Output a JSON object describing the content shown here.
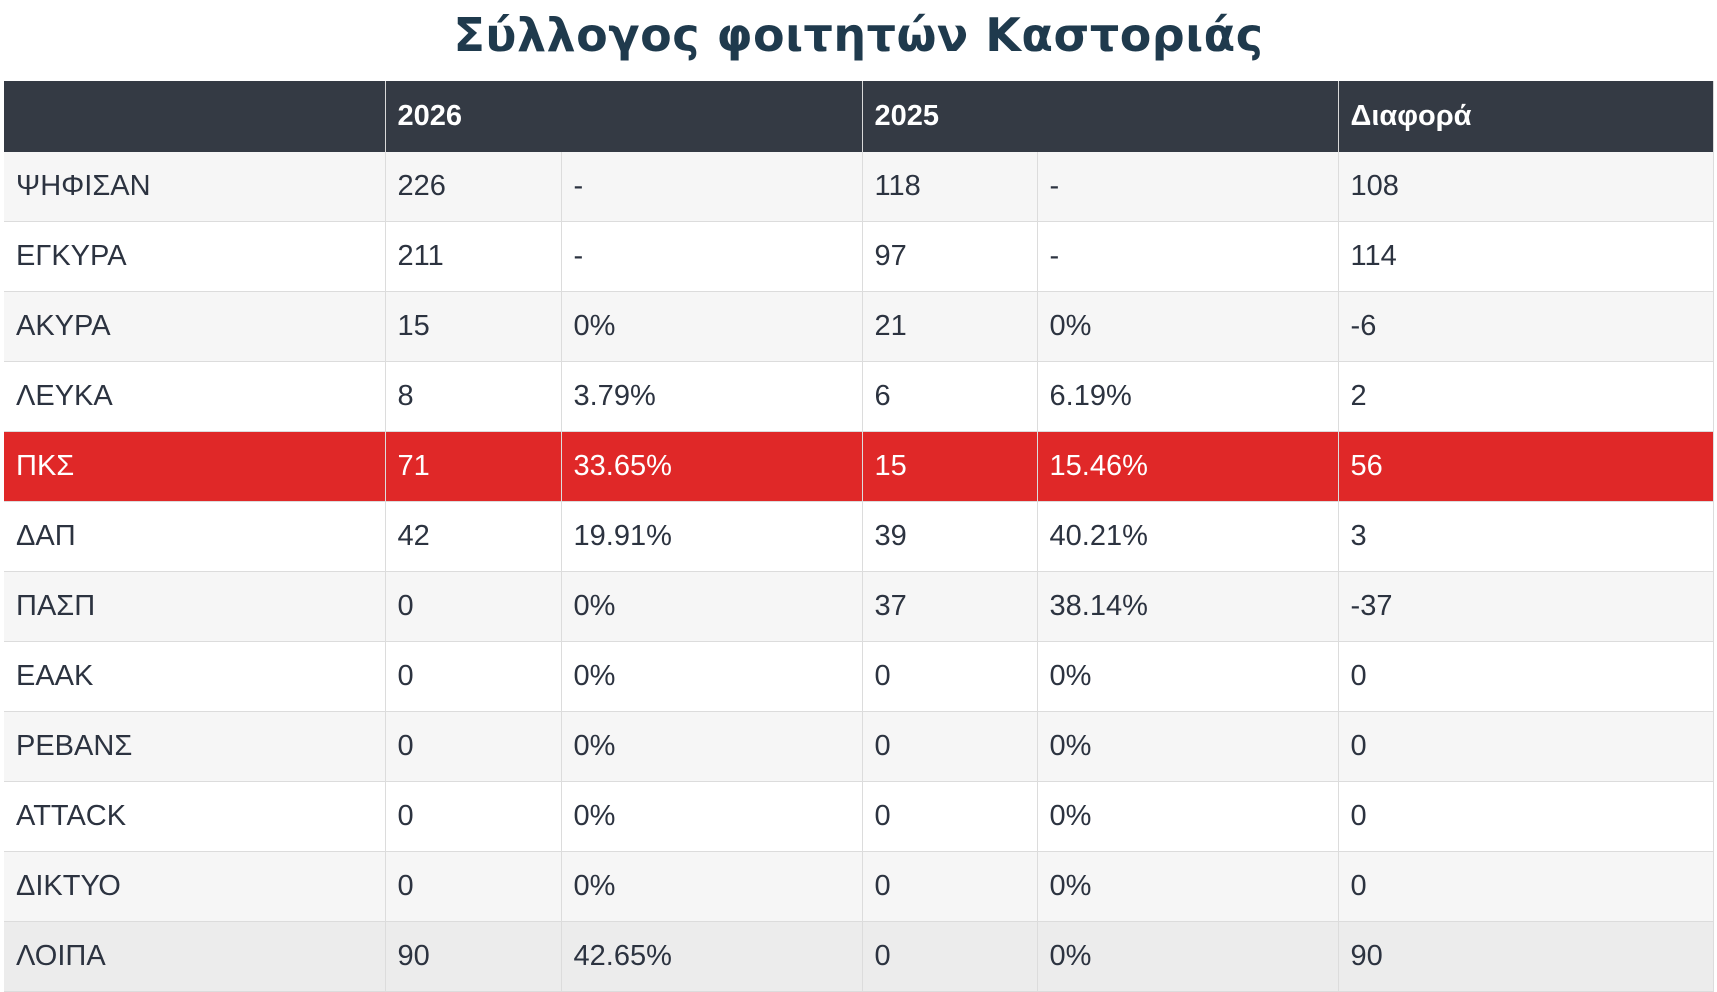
{
  "title": "Σύλλογος φοιτητών Καστοριάς",
  "table": {
    "header": [
      "2026",
      "2025",
      "Διαφορά"
    ],
    "rows": [
      {
        "cells": [
          "ΨΗΦΙΣΑΝ",
          "226",
          "-",
          "118",
          "-",
          "108"
        ]
      },
      {
        "cells": [
          "ΕΓΚΥΡΑ",
          "211",
          "-",
          "97",
          "-",
          "114"
        ]
      },
      {
        "cells": [
          "ΑΚΥΡΑ",
          "15",
          "0%",
          "21",
          "0%",
          "-6"
        ]
      },
      {
        "cells": [
          "ΛΕΥΚΑ",
          "8",
          "3.79%",
          "6",
          "6.19%",
          "2"
        ]
      },
      {
        "cells": [
          "ΠΚΣ",
          "71",
          "33.65%",
          "15",
          "15.46%",
          "56"
        ],
        "highlight": true
      },
      {
        "cells": [
          "ΔΑΠ",
          "42",
          "19.91%",
          "39",
          "40.21%",
          "3"
        ]
      },
      {
        "cells": [
          "ΠΑΣΠ",
          "0",
          "0%",
          "37",
          "38.14%",
          "-37"
        ]
      },
      {
        "cells": [
          "ΕΑΑΚ",
          "0",
          "0%",
          "0",
          "0%",
          "0"
        ]
      },
      {
        "cells": [
          "ΡΕΒΑΝΣ",
          "0",
          "0%",
          "0",
          "0%",
          "0"
        ]
      },
      {
        "cells": [
          "ATTACK",
          "0",
          "0%",
          "0",
          "0%",
          "0"
        ]
      },
      {
        "cells": [
          "ΔΙΚΤΥΟ",
          "0",
          "0%",
          "0",
          "0%",
          "0"
        ]
      },
      {
        "cells": [
          "ΛΟΙΠΑ",
          "90",
          "42.65%",
          "0",
          "0%",
          "90"
        ]
      }
    ]
  }
}
